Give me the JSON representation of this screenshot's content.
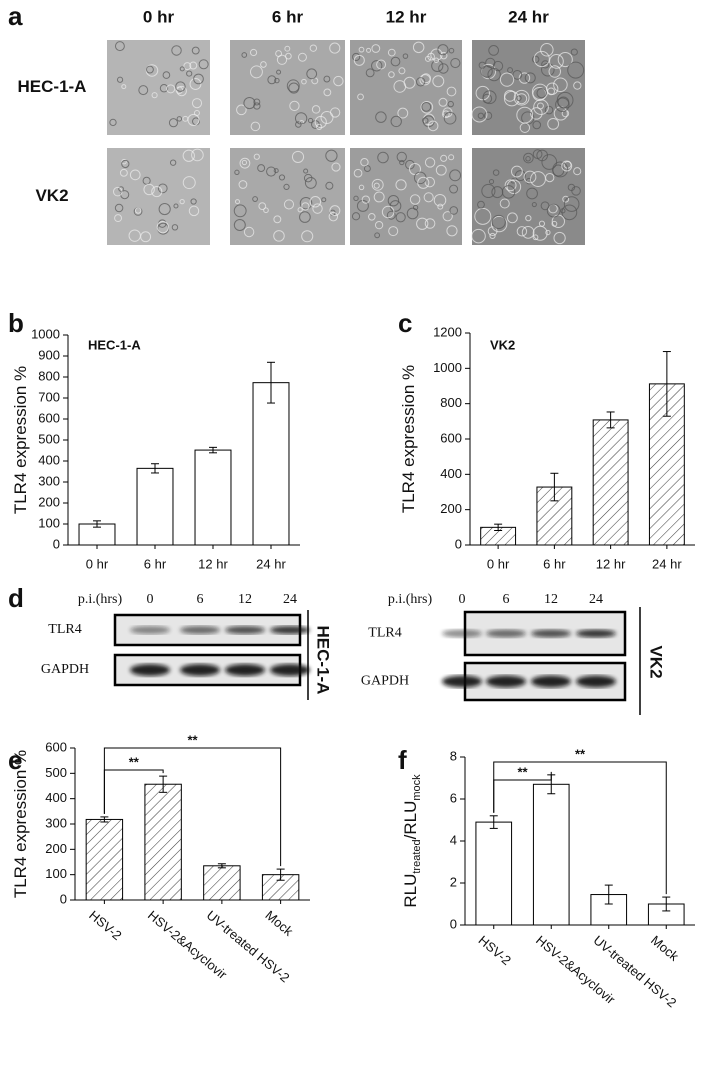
{
  "panel_a": {
    "letter": "a",
    "columns": [
      "0 hr",
      "6 hr",
      "12 hr",
      "24 hr"
    ],
    "rows": [
      "HEC-1-A",
      "VK2"
    ]
  },
  "panel_d": {
    "letter": "d",
    "blots": [
      {
        "header": "p.i.(hrs)",
        "lanes": [
          "0",
          "6",
          "12",
          "24"
        ],
        "bands": [
          "TLR4",
          "GAPDH"
        ],
        "cell_line": "HEC-1-A"
      },
      {
        "header": "p.i.(hrs)",
        "lanes": [
          "0",
          "6",
          "12",
          "24"
        ],
        "bands": [
          "TLR4",
          "GAPDH"
        ],
        "cell_line": "VK2"
      }
    ]
  },
  "chart_data": [
    {
      "type": "bar",
      "panel": "b",
      "title": "HEC-1-A",
      "ylabel": [
        "TLR4 expression %"
      ],
      "categories": [
        "0 hr",
        "6 hr",
        "12 hr",
        "24 hr"
      ],
      "values": [
        100,
        365,
        452,
        773
      ],
      "errors": [
        15,
        22,
        13,
        97
      ],
      "ylim": [
        0,
        1000
      ],
      "yticks": [
        0,
        100,
        200,
        300,
        400,
        500,
        600,
        700,
        800,
        900,
        1000
      ],
      "color": "#ffffff",
      "hatch": false
    },
    {
      "type": "bar",
      "panel": "c",
      "title": "VK2",
      "ylabel": [
        "TLR4 expression %"
      ],
      "categories": [
        "0 hr",
        "6 hr",
        "12 hr",
        "24 hr"
      ],
      "values": [
        100,
        328,
        708,
        912
      ],
      "errors": [
        18,
        78,
        45,
        183
      ],
      "ylim": [
        0,
        1200
      ],
      "yticks": [
        0,
        200,
        400,
        600,
        800,
        1000,
        1200
      ],
      "color": "#ffffff",
      "hatch": true
    },
    {
      "type": "bar",
      "panel": "e",
      "ylabel": [
        "TLR4 expression %"
      ],
      "categories": [
        "HSV-2",
        "HSV-2&Acyclovir",
        "UV-treated HSV-2",
        "Mock"
      ],
      "values": [
        318,
        457,
        135,
        100
      ],
      "errors": [
        10,
        32,
        8,
        22
      ],
      "ylim": [
        0,
        600
      ],
      "yticks": [
        0,
        100,
        200,
        300,
        400,
        500,
        600
      ],
      "color": "#ffffff",
      "hatch": true,
      "annotations": [
        "**",
        "**"
      ]
    },
    {
      "type": "bar",
      "panel": "f",
      "ylabel": [
        "RLU",
        "treated",
        "/RLU",
        "mock"
      ],
      "categories": [
        "HSV-2",
        "HSV-2&Acyclovir",
        "UV-treated HSV-2",
        "Mock"
      ],
      "values": [
        4.9,
        6.7,
        1.45,
        1.0
      ],
      "errors": [
        0.3,
        0.45,
        0.45,
        0.33
      ],
      "ylim": [
        0,
        8
      ],
      "yticks": [
        0,
        2,
        4,
        6,
        8
      ],
      "color": "#ffffff",
      "hatch": false,
      "annotations": [
        "**",
        "**"
      ]
    }
  ]
}
